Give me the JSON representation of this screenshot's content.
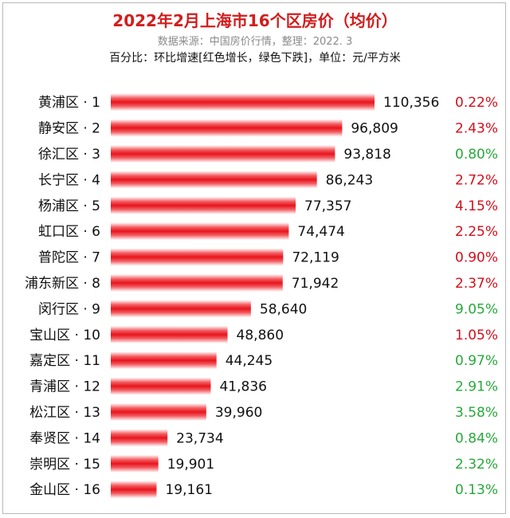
{
  "header": {
    "title": "2022年2月上海市16个区房价（均价）",
    "subtitle": "数据来源：中国房价行情，整理：2022. 3",
    "note": "百分比：环比增速[红色增长，绿色下跌]，单位：元/平方米"
  },
  "colors": {
    "title": "#d21d1d",
    "bar": "#e8141c",
    "up": "#d40f1b",
    "down": "#27a93a"
  },
  "chart_data": {
    "type": "bar",
    "orientation": "horizontal",
    "categories": [
      "黄浦区 · 1",
      "静安区 · 2",
      "徐汇区 · 3",
      "长宁区 · 4",
      "杨浦区 · 5",
      "虹口区 · 6",
      "普陀区 · 7",
      "浦东新区 · 8",
      "闵行区 · 9",
      "宝山区 · 10",
      "嘉定区 · 11",
      "青浦区 · 12",
      "松江区 · 13",
      "奉贤区 · 14",
      "崇明区 · 15",
      "金山区 · 16"
    ],
    "values": [
      110356,
      96809,
      93818,
      86243,
      77357,
      74474,
      72119,
      71942,
      58640,
      48860,
      44245,
      41836,
      39960,
      23734,
      19901,
      19161
    ],
    "value_labels": [
      "110,356",
      "96,809",
      "93,818",
      "86,243",
      "77,357",
      "74,474",
      "72,119",
      "71,942",
      "58,640",
      "48,860",
      "44,245",
      "41,836",
      "39,960",
      "23,734",
      "19,901",
      "19,161"
    ],
    "change_labels": [
      "0.22%",
      "2.43%",
      "0.80%",
      "2.72%",
      "4.15%",
      "2.25%",
      "0.90%",
      "2.37%",
      "9.05%",
      "1.05%",
      "0.97%",
      "2.91%",
      "3.58%",
      "0.84%",
      "2.32%",
      "0.13%"
    ],
    "change_direction": [
      "up",
      "up",
      "down",
      "up",
      "up",
      "up",
      "up",
      "up",
      "down",
      "up",
      "down",
      "down",
      "down",
      "down",
      "down",
      "down"
    ],
    "xlim": [
      0,
      110356
    ],
    "grid": false,
    "legend": "none"
  }
}
